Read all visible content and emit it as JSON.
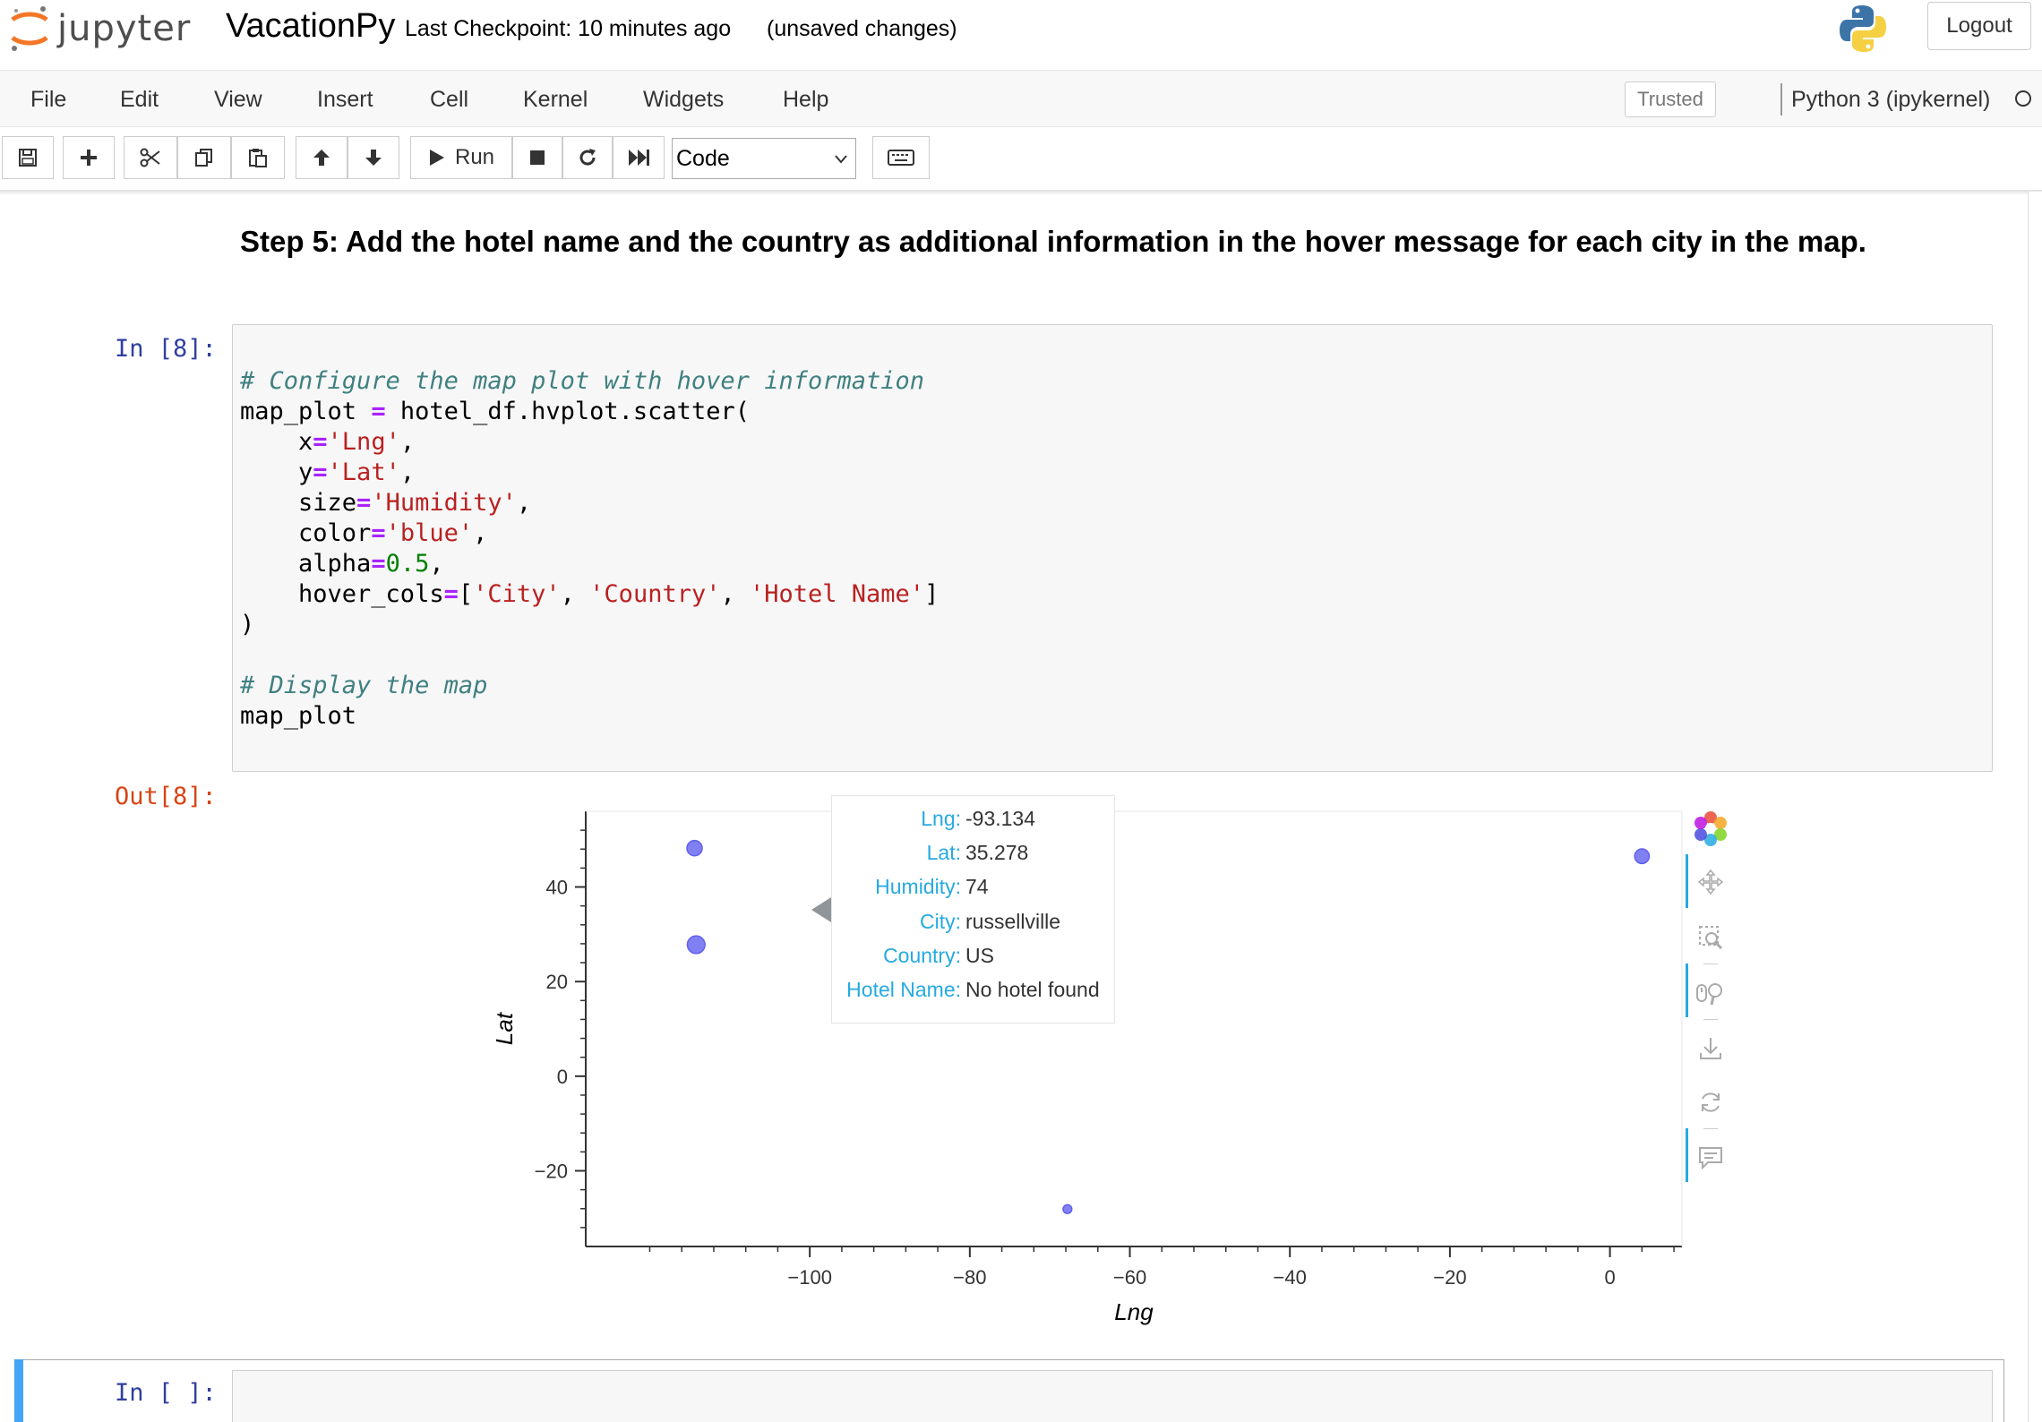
{
  "header": {
    "logo_text": "jupyter",
    "notebook_title": "VacationPy",
    "checkpoint": "Last Checkpoint: 10 minutes ago",
    "unsaved": "(unsaved changes)",
    "logout_label": "Logout"
  },
  "menubar": {
    "items": [
      "File",
      "Edit",
      "View",
      "Insert",
      "Cell",
      "Kernel",
      "Widgets",
      "Help"
    ],
    "trusted_label": "Trusted",
    "kernel_name": "Python 3 (ipykernel)"
  },
  "toolbar": {
    "run_label": "Run",
    "cell_type": "Code"
  },
  "markdown": {
    "heading": "Step 5: Add the hotel name and the country as additional information in the hover message for each city in the map."
  },
  "cells": {
    "in_prompt": "In [8]:",
    "out_prompt": "Out[8]:",
    "empty_prompt": "In [ ]:",
    "code_lines": [
      "# Configure the map plot with hover information",
      "map_plot = hotel_df.hvplot.scatter(",
      "    x='Lng',",
      "    y='Lat',",
      "    size='Humidity',",
      "    color='blue',",
      "    alpha=0.5,",
      "    hover_cols=['City', 'Country', 'Hotel Name']",
      ")",
      "",
      "# Display the map",
      "map_plot"
    ]
  },
  "chart_data": {
    "type": "scatter",
    "xlabel": "Lng",
    "ylabel": "Lat",
    "xlim": [
      -128,
      9
    ],
    "ylim": [
      -36,
      56
    ],
    "x_ticks": [
      -100,
      -80,
      -60,
      -40,
      -20,
      0
    ],
    "y_ticks": [
      -20,
      0,
      20,
      40
    ],
    "color": "#6060f0",
    "points": [
      {
        "x": -114.4,
        "y": 48.2,
        "humidity": 60
      },
      {
        "x": -114.2,
        "y": 27.8,
        "humidity": 80
      },
      {
        "x": -93.134,
        "y": 35.278,
        "humidity": 74
      },
      {
        "x": 4.0,
        "y": 46.5,
        "humidity": 55
      },
      {
        "x": -67.8,
        "y": -28.1,
        "humidity": 20
      }
    ]
  },
  "tooltip": {
    "rows": [
      {
        "key": "Lng:",
        "value": "-93.134"
      },
      {
        "key": "Lat:",
        "value": "35.278"
      },
      {
        "key": "Humidity:",
        "value": "74"
      },
      {
        "key": "City:",
        "value": "russellville"
      },
      {
        "key": "Country:",
        "value": "US"
      },
      {
        "key": "Hotel Name:",
        "value": "No hotel found"
      }
    ]
  },
  "icons": {
    "save": "save-icon",
    "add": "plus-icon",
    "cut": "scissors-icon",
    "copy": "copy-icon",
    "paste": "paste-icon",
    "up": "arrow-up-icon",
    "down": "arrow-down-icon",
    "stop": "stop-icon",
    "restart": "restart-icon",
    "fast_forward": "fast-forward-icon",
    "keyboard": "keyboard-icon"
  }
}
